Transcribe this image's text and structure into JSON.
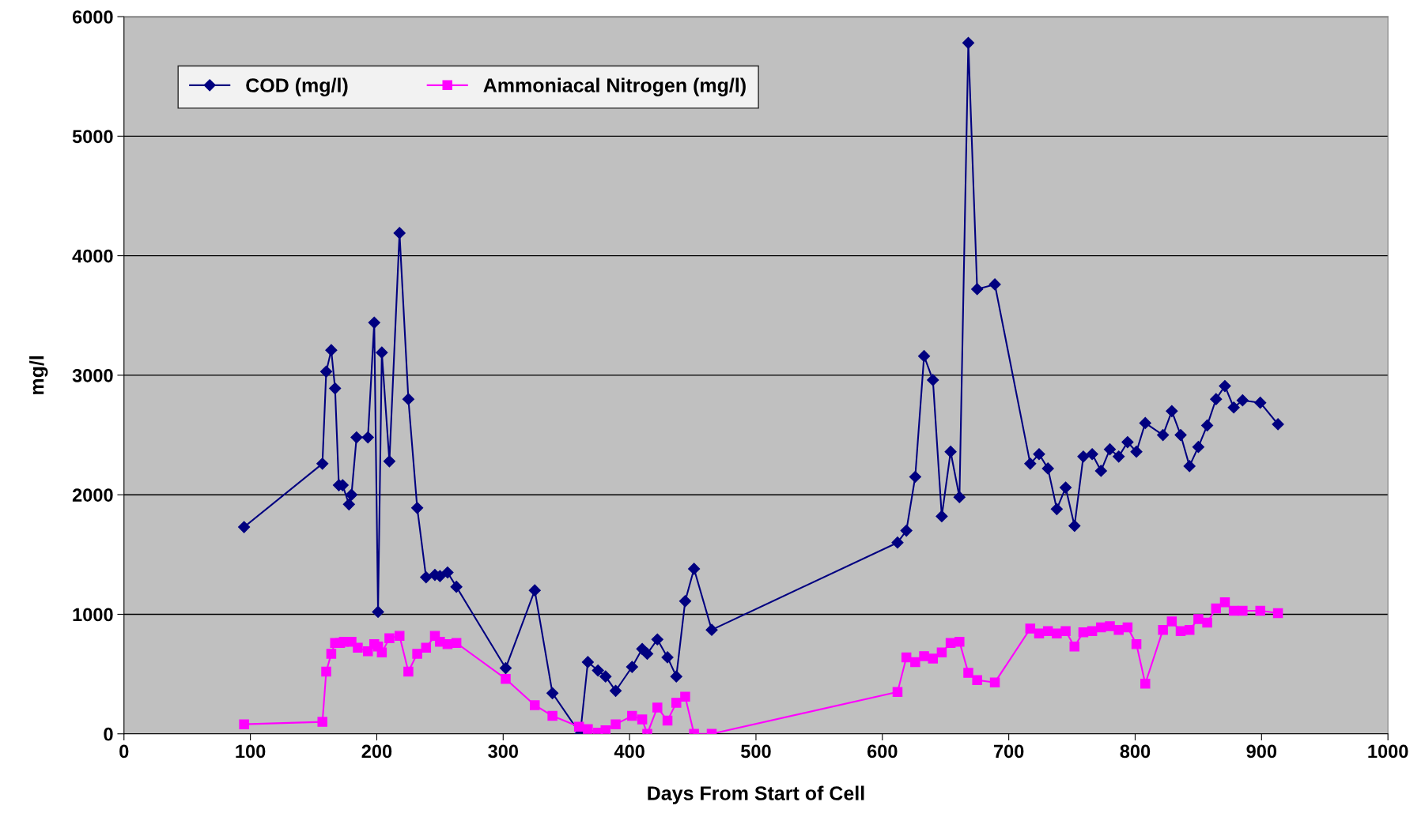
{
  "chart_data": {
    "type": "line",
    "xlabel": "Days From Start of Cell",
    "ylabel": "mg/l",
    "xlim": [
      0,
      1000
    ],
    "xticks": [
      0,
      100,
      200,
      300,
      400,
      500,
      600,
      700,
      800,
      900,
      1000
    ],
    "ylim": [
      0,
      6000
    ],
    "yticks": [
      0,
      1000,
      2000,
      3000,
      4000,
      5000,
      6000
    ],
    "grid": "y",
    "legend": "top left",
    "series": [
      {
        "name": "COD (mg/l)",
        "color": "#000080",
        "marker": "diamond",
        "x": [
          95,
          157,
          160,
          164,
          167,
          170,
          173,
          178,
          180,
          184,
          193,
          198,
          201,
          204,
          210,
          218,
          225,
          232,
          239,
          246,
          250,
          256,
          263,
          302,
          325,
          339,
          361,
          367,
          375,
          381,
          389,
          402,
          410,
          414,
          422,
          430,
          437,
          444,
          451,
          465,
          612,
          619,
          626,
          633,
          640,
          647,
          654,
          661,
          668,
          675,
          689,
          717,
          724,
          731,
          738,
          745,
          752,
          759,
          766,
          773,
          780,
          787,
          794,
          801,
          808,
          822,
          829,
          836,
          843,
          850,
          857,
          864,
          871,
          878,
          885,
          899,
          913
        ],
        "values": [
          1730,
          2260,
          3030,
          3210,
          2890,
          2080,
          2080,
          1920,
          2000,
          2480,
          2480,
          3440,
          1020,
          3190,
          2280,
          4190,
          2800,
          1890,
          1310,
          1330,
          1320,
          1350,
          1230,
          550,
          1200,
          340,
          0,
          600,
          530,
          480,
          360,
          560,
          710,
          670,
          790,
          640,
          480,
          1110,
          1380,
          870,
          1600,
          1700,
          2150,
          3160,
          2960,
          1820,
          2360,
          1980,
          5780,
          3720,
          3760,
          2260,
          2340,
          2220,
          1880,
          2060,
          1740,
          2320,
          2340,
          2200,
          2380,
          2320,
          2440,
          2360,
          2600,
          2500,
          2700,
          2500,
          2240,
          2400,
          2580,
          2800,
          2910,
          2730,
          2790,
          2770,
          2590
        ]
      },
      {
        "name": "Ammoniacal Nitrogen (mg/l)",
        "color": "#ff00ff",
        "marker": "square",
        "x": [
          95,
          157,
          160,
          164,
          167,
          171,
          174,
          180,
          185,
          193,
          198,
          201,
          204,
          210,
          218,
          225,
          232,
          239,
          246,
          250,
          256,
          263,
          302,
          325,
          339,
          360,
          367,
          375,
          381,
          389,
          402,
          410,
          414,
          422,
          430,
          437,
          444,
          451,
          465,
          612,
          619,
          626,
          633,
          640,
          647,
          654,
          661,
          668,
          675,
          689,
          717,
          724,
          731,
          738,
          745,
          752,
          759,
          766,
          773,
          780,
          787,
          794,
          801,
          808,
          822,
          829,
          836,
          843,
          850,
          857,
          864,
          871,
          878,
          885,
          899,
          913
        ],
        "values": [
          80,
          100,
          520,
          670,
          760,
          760,
          770,
          770,
          720,
          690,
          750,
          730,
          680,
          800,
          820,
          520,
          670,
          720,
          820,
          770,
          750,
          760,
          460,
          240,
          150,
          60,
          40,
          10,
          30,
          80,
          150,
          120,
          0,
          220,
          110,
          260,
          310,
          0,
          0,
          350,
          640,
          600,
          650,
          630,
          680,
          760,
          770,
          510,
          450,
          430,
          880,
          840,
          860,
          840,
          860,
          730,
          850,
          860,
          890,
          900,
          870,
          890,
          750,
          420,
          870,
          940,
          860,
          870,
          960,
          930,
          1050,
          1100,
          1030,
          1030,
          1030,
          1010
        ]
      }
    ]
  }
}
